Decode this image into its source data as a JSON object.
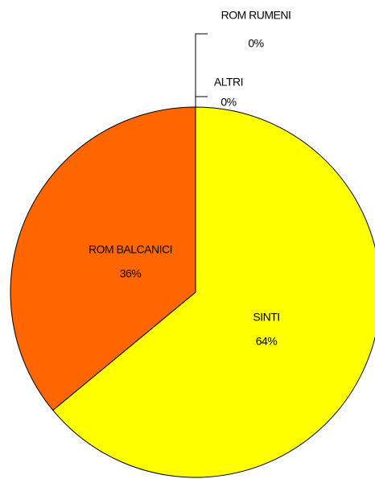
{
  "chart_data": {
    "type": "pie",
    "categories": [
      "SINTI",
      "ROM BALCANICI",
      "ALTRI",
      "ROM RUMENI"
    ],
    "values": [
      64,
      36,
      0,
      0
    ],
    "value_labels": [
      "64%",
      "36%",
      "0%",
      "0%"
    ],
    "colors": [
      "#ffff00",
      "#ff6600",
      "#ffffff",
      "#ffffff"
    ]
  }
}
